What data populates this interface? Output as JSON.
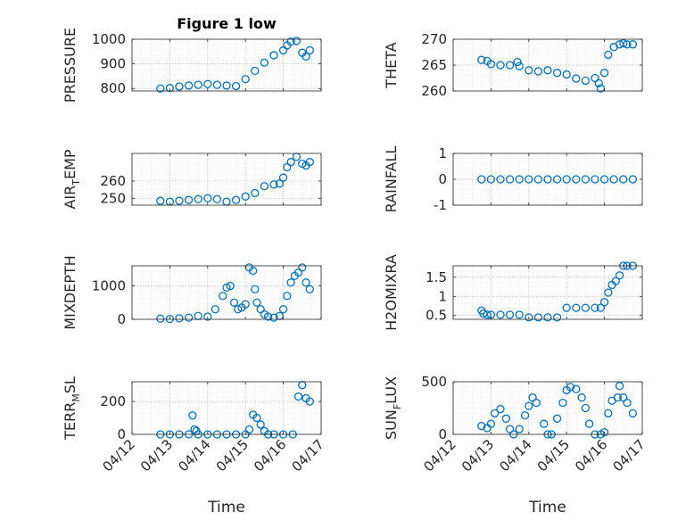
{
  "chart_data": [
    {
      "type": "scatter",
      "title": "Figure 1 low",
      "ylabel": "PRESSURE",
      "ylim": [
        790,
        1000
      ],
      "yticks": [
        800,
        900,
        1000
      ],
      "xlim": [
        0,
        5
      ],
      "xticks": [
        0,
        1,
        2,
        3,
        4,
        5
      ],
      "xticklabels": [],
      "xlabel": "",
      "grid": true,
      "x": [
        0.75,
        1.0,
        1.25,
        1.5,
        1.75,
        2.0,
        2.25,
        2.5,
        2.75,
        3.0,
        3.25,
        3.5,
        3.75,
        4.0,
        4.1,
        4.2,
        4.35,
        4.5,
        4.6,
        4.7
      ],
      "y": [
        800,
        802,
        808,
        812,
        815,
        818,
        815,
        812,
        810,
        838,
        872,
        905,
        935,
        955,
        975,
        990,
        993,
        945,
        930,
        955
      ]
    },
    {
      "type": "scatter",
      "title": "",
      "ylabel": "THETA",
      "ylim": [
        260,
        270
      ],
      "yticks": [
        260,
        265,
        270
      ],
      "xlim": [
        0,
        5
      ],
      "xticks": [
        0,
        1,
        2,
        3,
        4,
        5
      ],
      "xticklabels": [],
      "xlabel": "",
      "grid": true,
      "x": [
        0.75,
        0.9,
        1.0,
        1.25,
        1.5,
        1.7,
        1.75,
        2.0,
        2.25,
        2.5,
        2.75,
        3.0,
        3.25,
        3.5,
        3.75,
        3.85,
        3.9,
        4.0,
        4.1,
        4.25,
        4.4,
        4.5,
        4.6,
        4.75
      ],
      "y": [
        266,
        265.8,
        265.2,
        265,
        265,
        265.6,
        264.8,
        264,
        263.8,
        264,
        263.5,
        263.2,
        262.4,
        262,
        262.5,
        261.5,
        260.5,
        263.5,
        267,
        268.5,
        269,
        269.2,
        269,
        269
      ]
    },
    {
      "type": "scatter",
      "title": "",
      "ylabel": "AIR_TEMP",
      "ylim": [
        246,
        276
      ],
      "yticks": [
        250,
        260
      ],
      "xlim": [
        0,
        5
      ],
      "xticks": [
        0,
        1,
        2,
        3,
        4,
        5
      ],
      "xticklabels": [],
      "xlabel": "",
      "grid": true,
      "x": [
        0.75,
        1.0,
        1.25,
        1.5,
        1.75,
        2.0,
        2.25,
        2.5,
        2.75,
        3.0,
        3.25,
        3.5,
        3.75,
        3.9,
        4.0,
        4.1,
        4.2,
        4.35,
        4.5,
        4.6,
        4.7
      ],
      "y": [
        248.5,
        248,
        248.5,
        249,
        249.5,
        250,
        249.5,
        248,
        249,
        251,
        253,
        257,
        258,
        258.5,
        262,
        268,
        271,
        274,
        270,
        269,
        271
      ]
    },
    {
      "type": "scatter",
      "title": "",
      "ylabel": "RAINFALL",
      "ylim": [
        -1,
        1
      ],
      "yticks": [
        -1,
        0,
        1
      ],
      "xlim": [
        0,
        5
      ],
      "xticks": [
        0,
        1,
        2,
        3,
        4,
        5
      ],
      "xticklabels": [],
      "xlabel": "",
      "grid": true,
      "x": [
        0.75,
        1.0,
        1.25,
        1.5,
        1.75,
        2.0,
        2.25,
        2.5,
        2.75,
        3.0,
        3.25,
        3.5,
        3.75,
        4.0,
        4.25,
        4.5,
        4.75
      ],
      "y": [
        0,
        0,
        0,
        0,
        0,
        0,
        0,
        0,
        0,
        0,
        0,
        0,
        0,
        0,
        0,
        0,
        0
      ]
    },
    {
      "type": "scatter",
      "title": "",
      "ylabel": "MIXDEPTH",
      "ylim": [
        0,
        1600
      ],
      "yticks": [
        0,
        1000
      ],
      "xlim": [
        0,
        5
      ],
      "xticks": [
        0,
        1,
        2,
        3,
        4,
        5
      ],
      "xticklabels": [],
      "xlabel": "",
      "grid": true,
      "x": [
        0.75,
        1.0,
        1.25,
        1.5,
        1.75,
        2.0,
        2.2,
        2.4,
        2.5,
        2.6,
        2.7,
        2.8,
        2.9,
        3.0,
        3.1,
        3.2,
        3.25,
        3.3,
        3.4,
        3.5,
        3.6,
        3.75,
        3.9,
        4.0,
        4.1,
        4.2,
        4.3,
        4.4,
        4.5,
        4.6,
        4.7
      ],
      "y": [
        20,
        10,
        30,
        50,
        100,
        80,
        300,
        700,
        950,
        1000,
        500,
        300,
        350,
        450,
        1550,
        1450,
        900,
        500,
        300,
        150,
        80,
        50,
        100,
        300,
        700,
        1100,
        1300,
        1400,
        1550,
        1100,
        900
      ]
    },
    {
      "type": "scatter",
      "title": "",
      "ylabel": "H2OMIXRA",
      "ylim": [
        0.4,
        1.8
      ],
      "yticks": [
        0.5,
        1,
        1.5
      ],
      "xlim": [
        0,
        5
      ],
      "xticks": [
        0,
        1,
        2,
        3,
        4,
        5
      ],
      "xticklabels": [],
      "xlabel": "",
      "grid": true,
      "x": [
        0.75,
        0.8,
        0.9,
        1.0,
        1.25,
        1.5,
        1.75,
        2.0,
        2.25,
        2.5,
        2.75,
        3.0,
        3.25,
        3.5,
        3.75,
        3.9,
        4.0,
        4.1,
        4.2,
        4.3,
        4.4,
        4.5,
        4.6,
        4.75
      ],
      "y": [
        0.63,
        0.55,
        0.52,
        0.52,
        0.52,
        0.52,
        0.52,
        0.45,
        0.45,
        0.45,
        0.45,
        0.7,
        0.7,
        0.7,
        0.7,
        0.7,
        0.85,
        1.1,
        1.3,
        1.4,
        1.55,
        1.8,
        1.8,
        1.8
      ]
    },
    {
      "type": "scatter",
      "title": "",
      "ylabel": "TERR_MSL",
      "ylim": [
        0,
        320
      ],
      "yticks": [
        0,
        200
      ],
      "xlim": [
        0,
        5
      ],
      "xticks": [
        0,
        1,
        2,
        3,
        4,
        5
      ],
      "xticklabels": [
        "04/12",
        "04/13",
        "04/14",
        "04/15",
        "04/16",
        "04/17"
      ],
      "xlabel": "Time",
      "grid": true,
      "x": [
        0.75,
        1.0,
        1.25,
        1.5,
        1.6,
        1.65,
        1.7,
        1.75,
        2.0,
        2.25,
        2.5,
        2.75,
        3.0,
        3.1,
        3.2,
        3.3,
        3.4,
        3.5,
        3.6,
        3.75,
        4.0,
        4.25,
        4.4,
        4.5,
        4.6,
        4.7
      ],
      "y": [
        0,
        0,
        0,
        0,
        115,
        30,
        20,
        0,
        0,
        0,
        0,
        0,
        0,
        30,
        120,
        100,
        60,
        20,
        0,
        0,
        0,
        0,
        230,
        300,
        220,
        200
      ]
    },
    {
      "type": "scatter",
      "title": "",
      "ylabel": "SUN_FLUX",
      "ylim": [
        0,
        500
      ],
      "yticks": [
        0,
        500
      ],
      "xlim": [
        0,
        5
      ],
      "xticks": [
        0,
        1,
        2,
        3,
        4,
        5
      ],
      "xticklabels": [
        "04/12",
        "04/13",
        "04/14",
        "04/15",
        "04/16",
        "04/17"
      ],
      "xlabel": "Time",
      "grid": true,
      "x": [
        0.75,
        0.9,
        1.0,
        1.1,
        1.25,
        1.4,
        1.5,
        1.6,
        1.75,
        1.9,
        2.0,
        2.1,
        2.2,
        2.4,
        2.5,
        2.6,
        2.75,
        2.9,
        3.0,
        3.1,
        3.25,
        3.4,
        3.5,
        3.6,
        3.75,
        3.9,
        4.0,
        4.1,
        4.2,
        4.35,
        4.4,
        4.5,
        4.6,
        4.75
      ],
      "y": [
        80,
        60,
        100,
        200,
        240,
        150,
        50,
        0,
        50,
        180,
        270,
        350,
        300,
        100,
        0,
        0,
        150,
        300,
        420,
        450,
        430,
        350,
        250,
        100,
        0,
        0,
        20,
        200,
        320,
        350,
        460,
        350,
        300,
        200
      ]
    }
  ]
}
